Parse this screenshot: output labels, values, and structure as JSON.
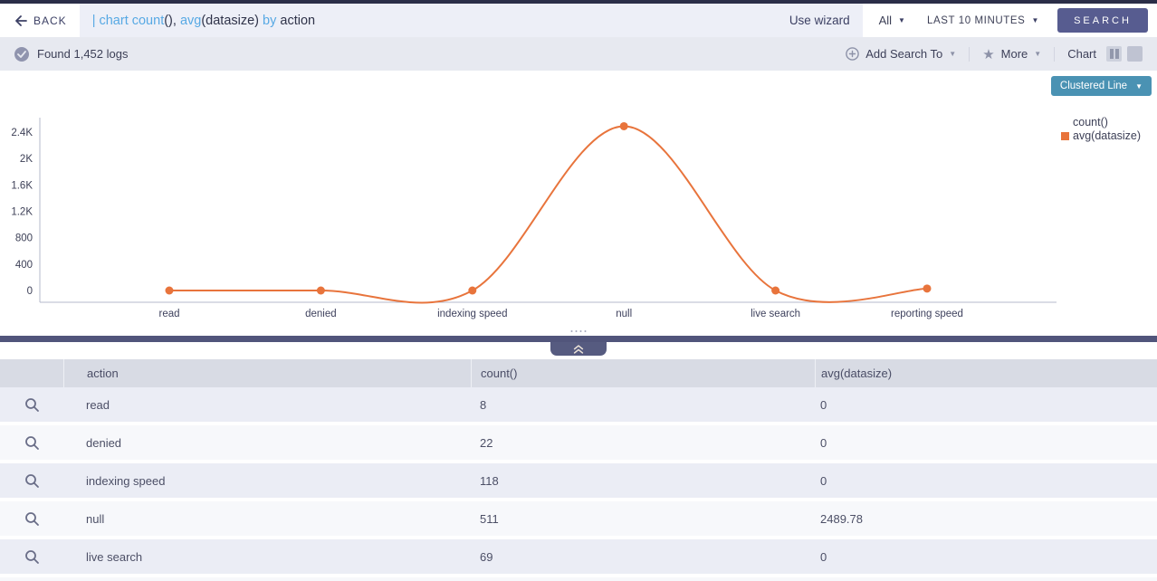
{
  "topbar": {
    "back_label": "BACK",
    "query_segments": {
      "s1": "| chart count",
      "s2": "(), ",
      "s3": "avg",
      "s4": "(datasize) ",
      "s5": "by",
      "s6": " action"
    },
    "use_wizard_label": "Use wizard",
    "scope_dropdown": "All",
    "time_range_dropdown": "LAST 10 MINUTES",
    "search_button": "SEARCH"
  },
  "statusbar": {
    "result_text": "Found 1,452 logs",
    "add_search_to_label": "Add Search To",
    "more_label": "More",
    "view_label": "Chart"
  },
  "chart": {
    "type_selector_label": "Clustered Line",
    "legend_series1": "count()",
    "legend_series2": "avg(datasize)"
  },
  "chart_data": {
    "type": "line",
    "title": "",
    "xlabel": "action",
    "ylabel": "",
    "categories": [
      "read",
      "denied",
      "indexing speed",
      "null",
      "live search",
      "reporting speed"
    ],
    "series": [
      {
        "name": "count()",
        "plotted": false,
        "values_from_table": [
          8,
          22,
          118,
          511,
          69
        ]
      },
      {
        "name": "avg(datasize)",
        "color": "#e8743c",
        "values": [
          0,
          0,
          0,
          2489.78,
          0,
          30
        ]
      }
    ],
    "y_ticks": [
      {
        "label": "2.4K",
        "value": 2400
      },
      {
        "label": "2K",
        "value": 2000
      },
      {
        "label": "1.6K",
        "value": 1600
      },
      {
        "label": "1.2K",
        "value": 1200
      },
      {
        "label": "800",
        "value": 800
      },
      {
        "label": "400",
        "value": 400
      },
      {
        "label": "0",
        "value": 0
      }
    ],
    "ylim": [
      0,
      2600
    ],
    "grid": false,
    "legend_position": "right",
    "curve": "smooth-spline-with-overshoot"
  },
  "table": {
    "columns": {
      "c1": "action",
      "c2": "count()",
      "c3": "avg(datasize)"
    },
    "rows": [
      {
        "action": "read",
        "count": "8",
        "avg": "0"
      },
      {
        "action": "denied",
        "count": "22",
        "avg": "0"
      },
      {
        "action": "indexing speed",
        "count": "118",
        "avg": "0"
      },
      {
        "action": "null",
        "count": "511",
        "avg": "2489.78"
      },
      {
        "action": "live search",
        "count": "69",
        "avg": "0"
      }
    ]
  },
  "colors": {
    "accent_orange": "#e8743c",
    "search_button_indigo": "#575c90",
    "chart_type_teal": "#4a92b3",
    "top_strip_navy": "#2b2e48",
    "divider_slate": "#51557b",
    "query_keyword_blue": "#57a9e4"
  }
}
